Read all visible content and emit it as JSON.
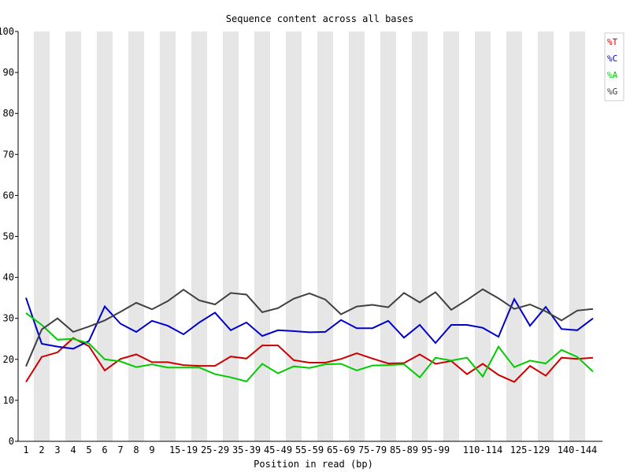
{
  "chart_data": {
    "type": "line",
    "title": "Sequence content across all bases",
    "xlabel": "Position in read (bp)",
    "ylabel": "",
    "ylim": [
      0,
      100
    ],
    "yticks": [
      0,
      10,
      20,
      30,
      40,
      50,
      60,
      70,
      80,
      90,
      100
    ],
    "categories": [
      "1",
      "2",
      "3",
      "4",
      "5",
      "6",
      "7",
      "8",
      "9",
      "10-14",
      "15-19",
      "20-24",
      "25-29",
      "30-34",
      "35-39",
      "40-44",
      "45-49",
      "50-54",
      "55-59",
      "60-64",
      "65-69",
      "70-74",
      "75-79",
      "80-84",
      "85-89",
      "90-94",
      "95-99",
      "100-104",
      "105-109",
      "110-114",
      "115-119",
      "120-124",
      "125-129",
      "130-134",
      "135-139",
      "140-144",
      "145-149"
    ],
    "tick_labels": [
      "1",
      "2",
      "3",
      "4",
      "5",
      "6",
      "7",
      "8",
      "9",
      "",
      "15-19",
      "",
      "25-29",
      "",
      "35-39",
      "",
      "45-49",
      "",
      "55-59",
      "",
      "65-69",
      "",
      "75-79",
      "",
      "85-89",
      "",
      "95-99",
      "",
      "",
      "110-114",
      "",
      "",
      "125-129",
      "",
      "",
      "140-144",
      ""
    ],
    "grid": "alternating vertical bands",
    "legend_position": "top-right",
    "series": [
      {
        "name": "%T",
        "color": "#cc0000",
        "values": [
          14.5,
          20.6,
          21.7,
          25.2,
          23.2,
          17.3,
          20.1,
          21.2,
          19.3,
          19.3,
          18.6,
          18.4,
          18.4,
          20.7,
          20.2,
          23.4,
          23.4,
          19.8,
          19.2,
          19.2,
          20.1,
          21.5,
          20.2,
          19.0,
          19.1,
          21.2,
          18.9,
          19.6,
          16.4,
          18.9,
          16.2,
          14.5,
          18.4,
          16.0,
          20.4,
          20.1,
          20.4
        ]
      },
      {
        "name": "%C",
        "color": "#0000cc",
        "values": [
          35.0,
          23.8,
          23.1,
          22.6,
          24.5,
          32.9,
          28.7,
          26.7,
          29.4,
          28.2,
          26.1,
          29.0,
          31.4,
          27.1,
          29.0,
          25.7,
          27.1,
          26.9,
          26.6,
          26.7,
          29.6,
          27.6,
          27.6,
          29.4,
          25.3,
          28.4,
          24.0,
          28.4,
          28.4,
          27.7,
          25.5,
          34.7,
          28.2,
          32.8,
          27.4,
          27.1,
          30.0
        ]
      },
      {
        "name": "%A",
        "color": "#00cc00",
        "values": [
          31.3,
          28.4,
          24.8,
          25.0,
          23.9,
          20.0,
          19.5,
          18.1,
          18.8,
          18.0,
          18.0,
          18.0,
          16.4,
          15.6,
          14.6,
          18.9,
          16.6,
          18.3,
          17.9,
          18.8,
          18.9,
          17.3,
          18.5,
          18.6,
          18.8,
          15.6,
          20.4,
          19.7,
          20.4,
          15.8,
          23.1,
          18.1,
          19.7,
          19.0,
          22.3,
          20.6,
          17.0
        ]
      },
      {
        "name": "%G",
        "color": "#404040",
        "values": [
          18.3,
          27.3,
          30.0,
          26.7,
          28.0,
          29.5,
          31.6,
          33.8,
          32.2,
          34.2,
          37.0,
          34.4,
          33.4,
          36.2,
          35.8,
          31.5,
          32.5,
          34.8,
          36.1,
          34.6,
          31.0,
          32.9,
          33.3,
          32.7,
          36.2,
          33.9,
          36.4,
          32.1,
          34.5,
          37.1,
          34.9,
          32.3,
          33.4,
          31.7,
          29.5,
          31.9,
          32.3
        ]
      }
    ]
  }
}
